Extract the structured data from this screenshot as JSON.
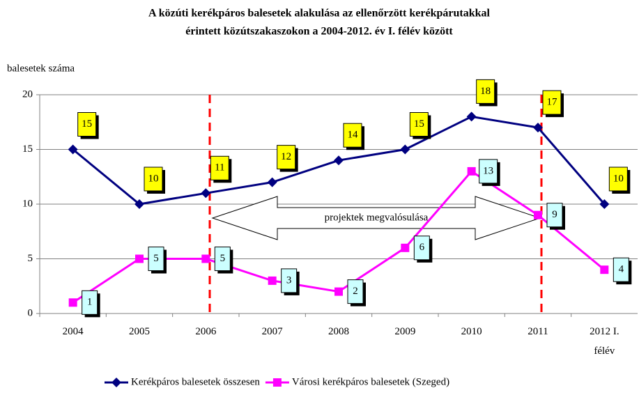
{
  "chart_data": {
    "type": "line",
    "title": "A közúti kerékpáros balesetek alakulása az ellenőrzött kerékpárutakkal",
    "subtitle": "érintett közútszakaszokon a 2004-2012. év I. félév között",
    "y_label": "balesetek száma",
    "annotation": "projektek megvalósulása",
    "categories": [
      "2004",
      "2005",
      "2006",
      "2007",
      "2008",
      "2009",
      "2010",
      "2011",
      "2012 I. félév"
    ],
    "series": [
      {
        "name": "Kerékpáros balesetek összesen",
        "color": "#000080",
        "marker": "diamond",
        "label_color": "#ffff00",
        "values": [
          15,
          10,
          11,
          12,
          14,
          15,
          18,
          17,
          10
        ]
      },
      {
        "name": "Városi kerékpáros balesetek (Szeged)",
        "color": "#ff00ff",
        "marker": "square",
        "label_color": "#ccffff",
        "values": [
          1,
          5,
          5,
          3,
          2,
          6,
          13,
          9,
          4
        ]
      }
    ],
    "ylim": [
      0,
      20
    ],
    "yticks": [
      0,
      5,
      10,
      15,
      20
    ],
    "grid": true
  }
}
